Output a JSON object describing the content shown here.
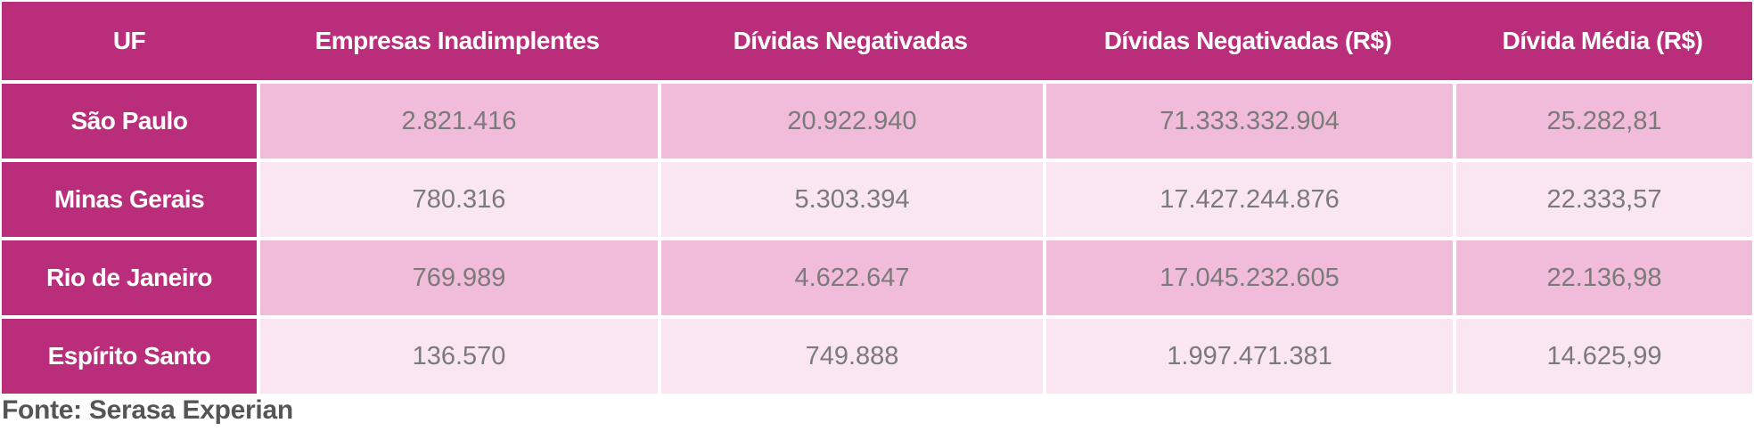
{
  "table": {
    "headers": [
      "UF",
      "Empresas Inadimplentes",
      "Dívidas Negativadas",
      "Dívidas Negativadas (R$)",
      "Dívida Média (R$)"
    ],
    "rows": [
      {
        "uf": "São Paulo",
        "values": [
          "2.821.416",
          "20.922.940",
          "71.333.332.904",
          "25.282,81"
        ]
      },
      {
        "uf": "Minas Gerais",
        "values": [
          "780.316",
          "5.303.394",
          "17.427.244.876",
          "22.333,57"
        ]
      },
      {
        "uf": "Rio de Janeiro",
        "values": [
          "769.989",
          "4.622.647",
          "17.045.232.605",
          "22.136,98"
        ]
      },
      {
        "uf": "Espírito Santo",
        "values": [
          "136.570",
          "749.888",
          "1.997.471.381",
          "14.625,99"
        ]
      }
    ]
  },
  "source": "Fonte: Serasa Experian",
  "colors": {
    "header": "#b92d7b",
    "row_dark": "#f0bcd9",
    "row_light": "#fae6f3",
    "value_text": "#7a7a7a"
  }
}
